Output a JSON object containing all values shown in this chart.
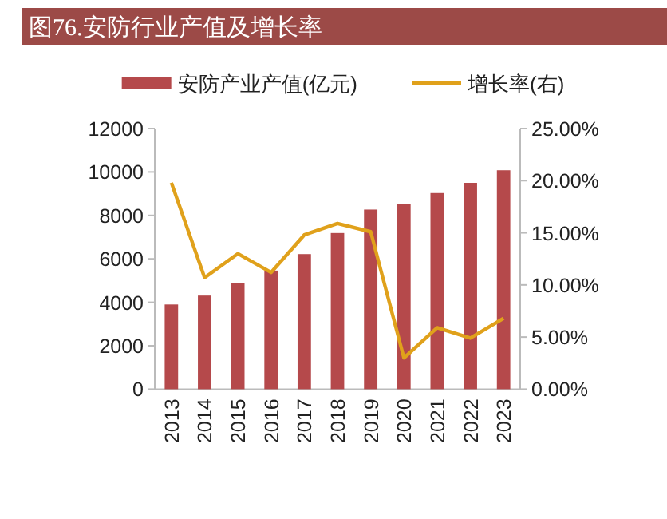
{
  "chart_data": {
    "type": "bar",
    "title": "图76.安防行业产值及增长率",
    "categories": [
      "2013",
      "2014",
      "2015",
      "2016",
      "2017",
      "2018",
      "2019",
      "2020",
      "2021",
      "2022",
      "2023"
    ],
    "series": [
      {
        "name": "安防产业产值(亿元)",
        "color": "#b5494b",
        "values": [
          3900,
          4310,
          4870,
          5460,
          6220,
          7190,
          8270,
          8510,
          9030,
          9500,
          10080
        ]
      },
      {
        "name": "增长率(右)",
        "type": "line",
        "axis": "y2",
        "color": "#e0a11b",
        "values": [
          19.8,
          10.7,
          13.0,
          11.2,
          14.8,
          15.9,
          15.1,
          3.0,
          5.9,
          4.9,
          6.8
        ]
      }
    ],
    "ylim": [
      0,
      12000
    ],
    "yticks": [
      0,
      2000,
      4000,
      6000,
      8000,
      10000,
      12000
    ],
    "y2lim": [
      0,
      25
    ],
    "y2ticks": [
      {
        "value": 0,
        "label": "0.00%"
      },
      {
        "value": 5,
        "label": "5.00%"
      },
      {
        "value": 10,
        "label": "10.00%"
      },
      {
        "value": 15,
        "label": "15.00%"
      },
      {
        "value": 20,
        "label": "20.00%"
      },
      {
        "value": 25,
        "label": "25.00%"
      }
    ],
    "legend": "top",
    "grid": false
  }
}
